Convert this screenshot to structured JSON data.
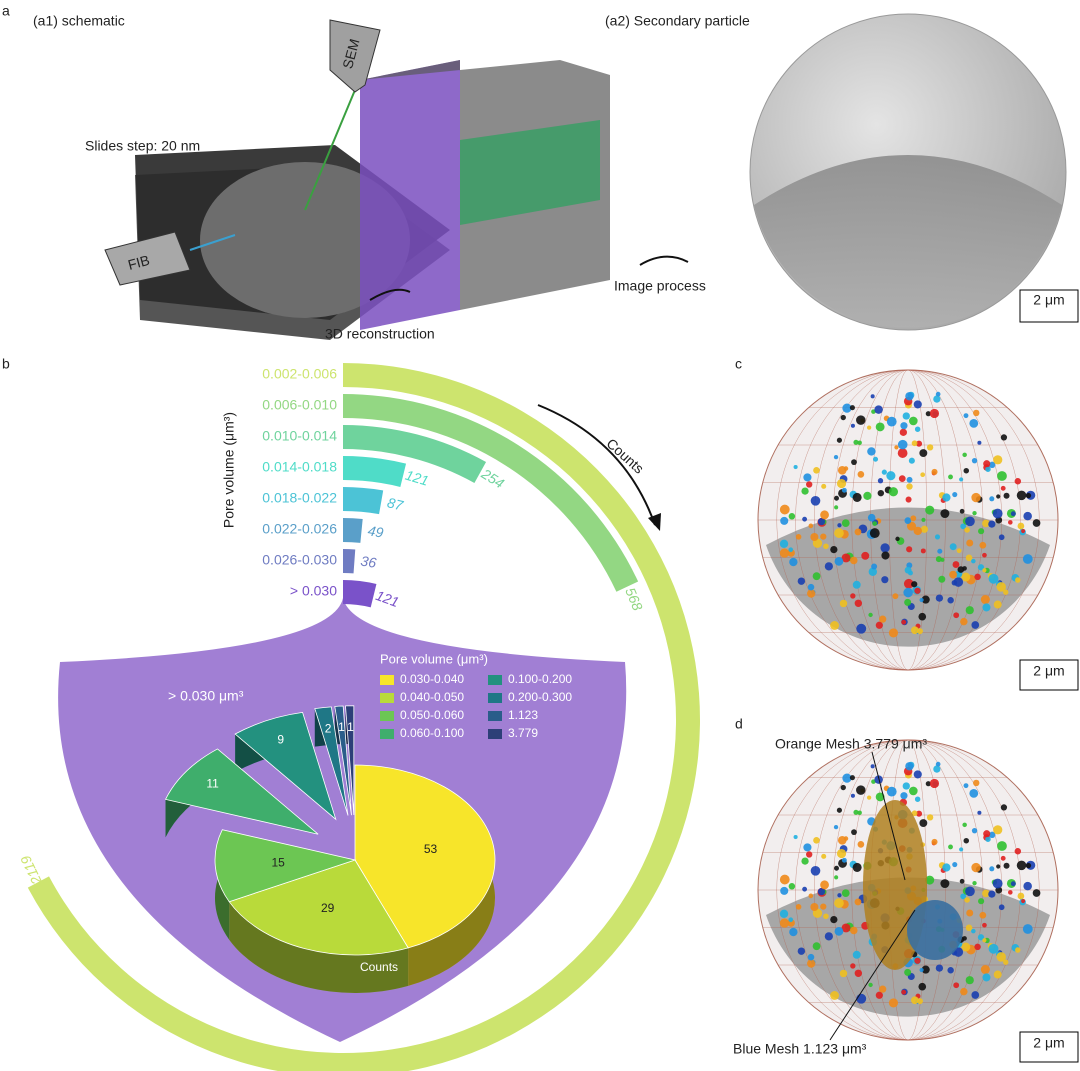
{
  "panels": {
    "a": {
      "letter": "a",
      "a1_title": "(a1) schematic",
      "sem": "SEM",
      "fib": "FIB",
      "slides_step": "Slides step: 20 nm",
      "reconstruction": "3D reconstruction",
      "a2_title": "(a2) Secondary particle",
      "image_process": "Image process",
      "scale_bar": "2 μm"
    },
    "b": {
      "letter": "b"
    },
    "c": {
      "letter": "c",
      "scale_bar": "2 μm"
    },
    "d": {
      "letter": "d",
      "orange_mesh": "Orange Mesh 3.779 μm³",
      "blue_mesh": "Blue Mesh 1.123 μm³",
      "scale_bar": "2 μm"
    }
  },
  "chart_data": [
    {
      "type": "radial-bar",
      "y_label": "Pore volume (μm³)",
      "annotation": "Counts",
      "categories": [
        "0.002-0.006",
        "0.006-0.010",
        "0.010-0.014",
        "0.014-0.018",
        "0.018-0.022",
        "0.022-0.026",
        "0.026-0.030",
        "> 0.030"
      ],
      "values": [
        2119,
        568,
        254,
        121,
        87,
        49,
        36,
        121
      ],
      "colors": [
        "#cde46e",
        "#93d783",
        "#6fd39d",
        "#4fdcc8",
        "#4cc3d6",
        "#5a9fc9",
        "#6f7cc2",
        "#7a52c9"
      ]
    },
    {
      "type": "pie",
      "legend_title": "Pore volume (μm³)",
      "annotation": "> 0.030 μm³",
      "label": "Counts",
      "categories": [
        "0.030-0.040",
        "0.040-0.050",
        "0.050-0.060",
        "0.060-0.100",
        "0.100-0.200",
        "0.200-0.300",
        "1.123",
        "3.779"
      ],
      "values": [
        53,
        29,
        15,
        11,
        9,
        2,
        1,
        1
      ],
      "colors": [
        "#f7e52a",
        "#b9da3a",
        "#6cc653",
        "#3fae6c",
        "#23917f",
        "#1f7786",
        "#2a5d8a",
        "#2d3f78"
      ]
    }
  ]
}
